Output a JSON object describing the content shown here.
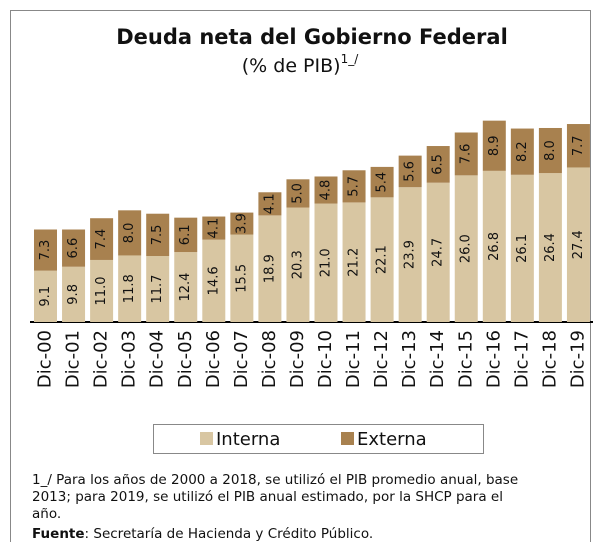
{
  "chart_data": {
    "type": "stacked_bar",
    "title": "Deuda neta del Gobierno Federal",
    "subtitle": "(% de PIB)",
    "subtitle_note": "1_/",
    "categories": [
      "Dic-00",
      "Dic-01",
      "Dic-02",
      "Dic-03",
      "Dic-04",
      "Dic-05",
      "Dic-06",
      "Dic-07",
      "Dic-08",
      "Dic-09",
      "Dic-10",
      "Dic-11",
      "Dic-12",
      "Dic-13",
      "Dic-14",
      "Dic-15",
      "Dic-16",
      "Dic-17",
      "Dic-18",
      "Dic-19"
    ],
    "series": [
      {
        "name": "Interna",
        "color": "#d8c6a2",
        "values": [
          9.1,
          9.8,
          11.0,
          11.8,
          11.7,
          12.4,
          14.6,
          15.5,
          18.9,
          20.3,
          21.0,
          21.2,
          22.1,
          23.9,
          24.7,
          26.0,
          26.8,
          26.1,
          26.4,
          27.4
        ],
        "value_labels": [
          "9.1",
          "9.8",
          "11.0",
          "11.8",
          "11.7",
          "12.4",
          "14.6",
          "15.5",
          "18.9",
          "20.3",
          "21.0",
          "21.2",
          "22.1",
          "23.9",
          "24.7",
          "26.0",
          "26.8",
          "26.1",
          "26.4",
          "27.4"
        ]
      },
      {
        "name": "Externa",
        "color": "#a8814f",
        "values": [
          7.3,
          6.6,
          7.4,
          8.0,
          7.5,
          6.1,
          4.1,
          3.9,
          4.1,
          5.0,
          4.8,
          5.7,
          5.4,
          5.6,
          6.5,
          7.6,
          8.9,
          8.2,
          8.0,
          7.7
        ],
        "value_labels": [
          "7.3",
          "6.6",
          "7.4",
          "8.0",
          "7.5",
          "6.1",
          "4.1",
          "3.9",
          "4.1",
          "5.0",
          "4.8",
          "5.7",
          "5.4",
          "5.6",
          "6.5",
          "7.6",
          "8.9",
          "8.2",
          "8.0",
          "7.7"
        ]
      }
    ],
    "legend": "bottom",
    "footnote": [
      "1_/ Para los años de 2000 a 2018, se utilizó el PIB promedio anual, base",
      "2013; para 2019, se utilizó el PIB anual estimado, por la SHCP para el",
      "año."
    ],
    "source_label": "Fuente",
    "source_text": ": Secretaría de Hacienda y Crédito Público."
  }
}
